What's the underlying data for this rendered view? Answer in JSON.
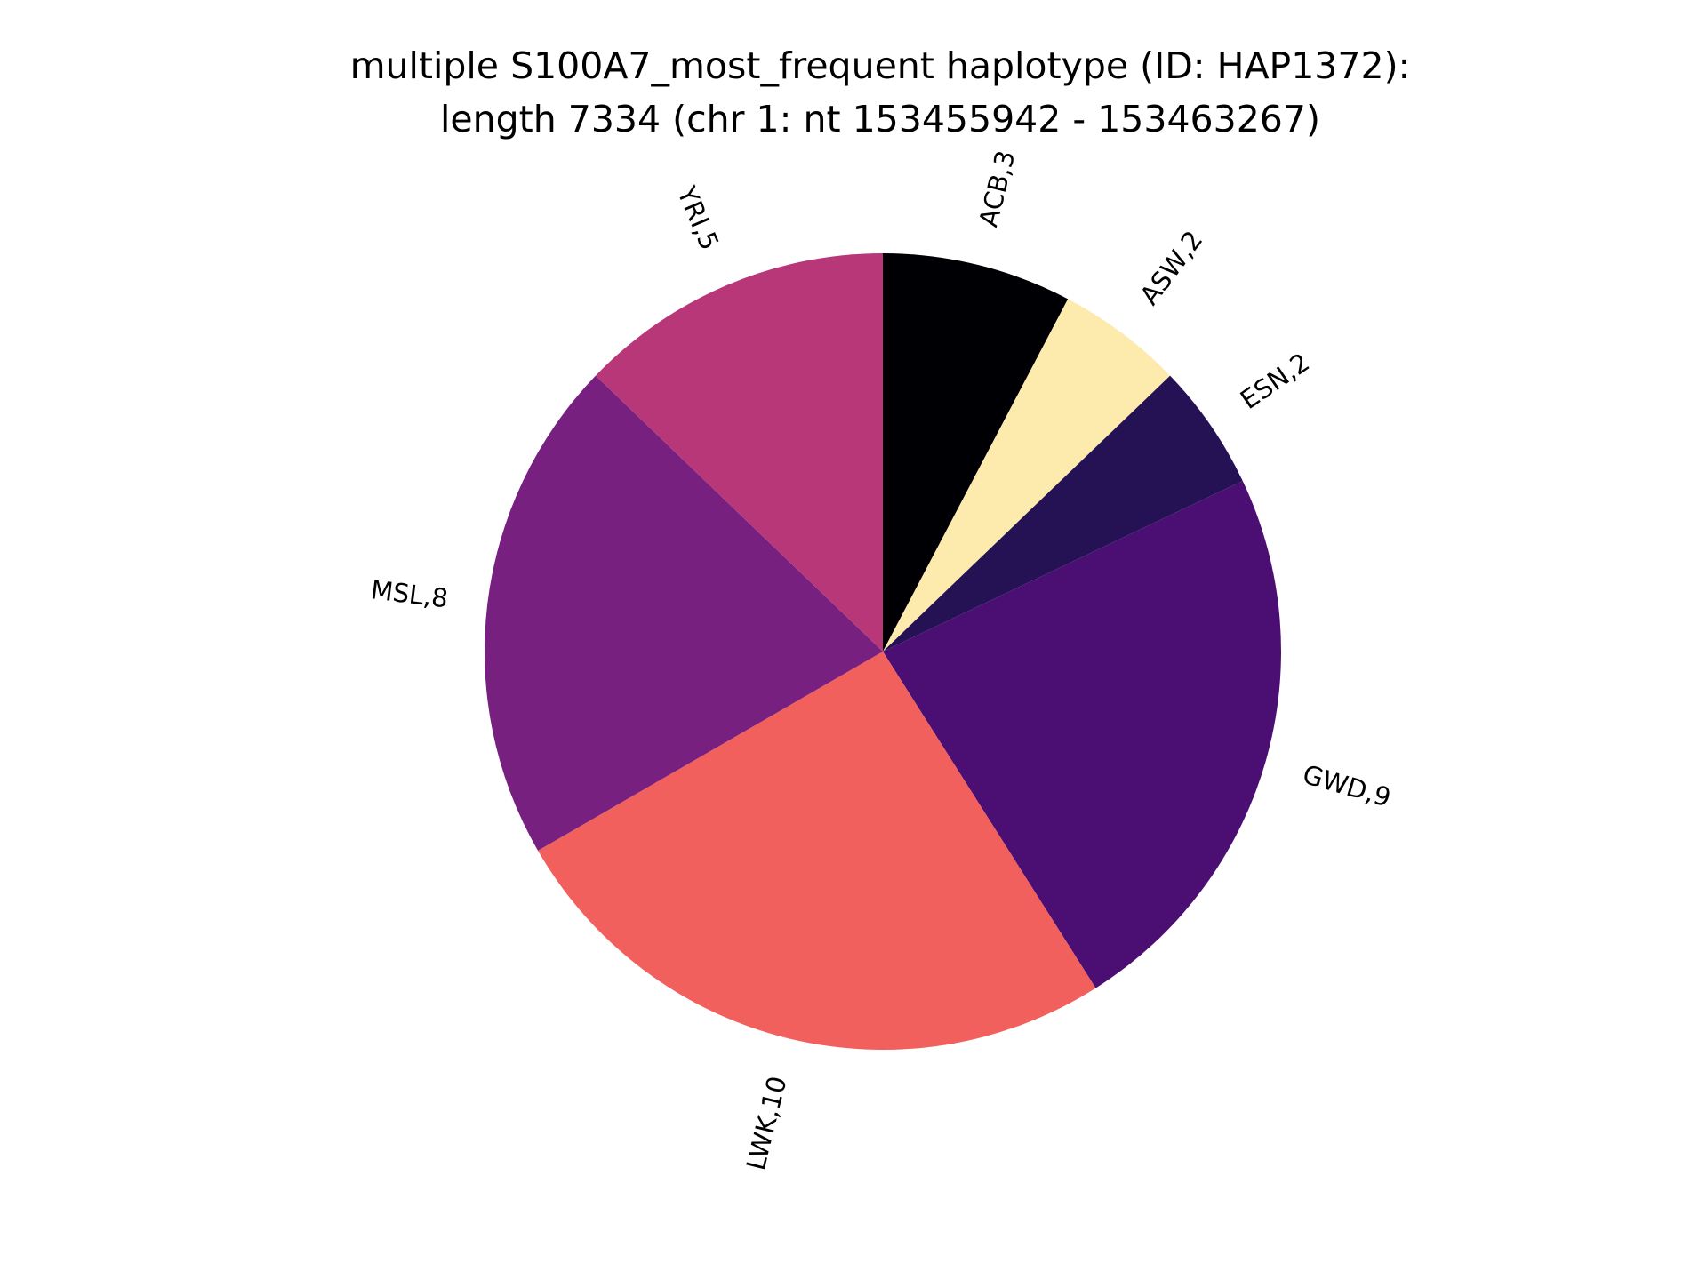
{
  "chart_data": {
    "type": "pie",
    "title_lines": [
      "multiple S100A7_most_frequent haplotype (ID: HAP1372):",
      "length 7334 (chr 1: nt 153455942 - 153463267)"
    ],
    "start_angle_deg": 90,
    "direction": "clockwise",
    "slices": [
      {
        "name": "ACB",
        "value": 3,
        "label": "ACB,3",
        "color": "#000004"
      },
      {
        "name": "ASW",
        "value": 2,
        "label": "ASW,2",
        "color": "#fcebac"
      },
      {
        "name": "ESN",
        "value": 2,
        "label": "ESN,2",
        "color": "#251255"
      },
      {
        "name": "GWD",
        "value": 9,
        "label": "GWD,9",
        "color": "#4b0f74"
      },
      {
        "name": "LWK",
        "value": 10,
        "label": "LWK,10",
        "color": "#f1605d"
      },
      {
        "name": "MSL",
        "value": 8,
        "label": "MSL,8",
        "color": "#772080"
      },
      {
        "name": "YRI",
        "value": 5,
        "label": "YRI,5",
        "color": "#b73779"
      }
    ]
  }
}
